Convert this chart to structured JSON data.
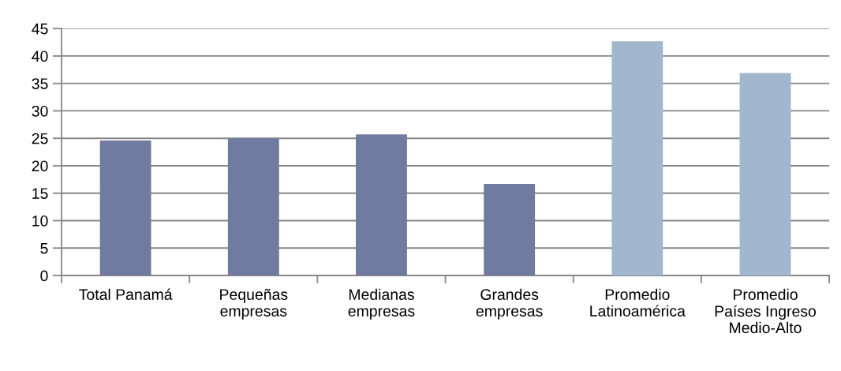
{
  "chart_data": {
    "type": "bar",
    "categories": [
      "Total Panamá",
      "Pequeñas\nempresas",
      "Medianas\nempresas",
      "Grandes\nempresas",
      "Promedio\nLatinoamérica",
      "Promedio\nPaíses Ingreso\nMedio-Alto"
    ],
    "values": [
      24.6,
      25.0,
      25.7,
      16.7,
      42.7,
      36.9
    ],
    "colors": [
      "#717ba1",
      "#717ba1",
      "#717ba1",
      "#717ba1",
      "#a1b7ce",
      "#a1b7ce"
    ],
    "ylim": [
      0,
      45
    ],
    "yticks": [
      0,
      5,
      10,
      15,
      20,
      25,
      30,
      35,
      40,
      45
    ],
    "grid": "y"
  }
}
